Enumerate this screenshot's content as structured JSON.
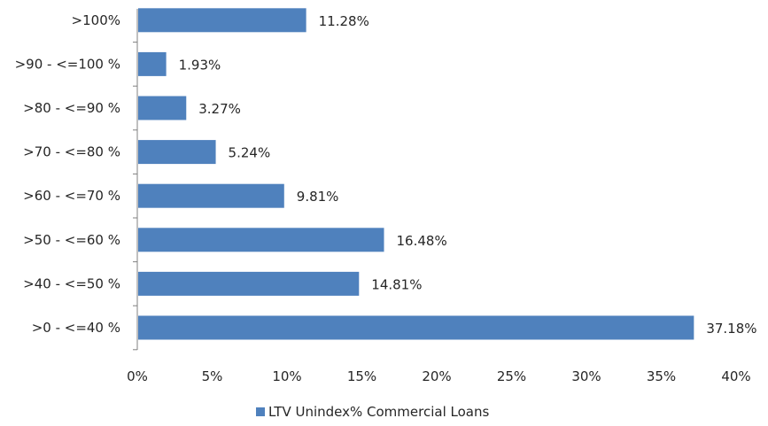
{
  "chart_data": {
    "type": "bar",
    "orientation": "horizontal",
    "categories": [
      ">0 - <=40 %",
      ">40 - <=50 %",
      ">50 - <=60 %",
      ">60 - <=70 %",
      ">70 - <=80 %",
      ">80 - <=90 %",
      ">90 - <=100 %",
      ">100%"
    ],
    "series": [
      {
        "name": "LTV Unindex% Commercial Loans",
        "values": [
          37.18,
          14.81,
          16.48,
          9.81,
          5.24,
          3.27,
          1.93,
          11.28
        ],
        "value_labels": [
          "37.18%",
          "14.81%",
          "16.48%",
          "9.81%",
          "5.24%",
          "3.27%",
          "1.93%",
          "11.28%"
        ],
        "color": "#4F81BD"
      }
    ],
    "x_ticks": [
      "0%",
      "5%",
      "10%",
      "15%",
      "20%",
      "25%",
      "30%",
      "35%",
      "40%"
    ],
    "xlim": [
      0,
      40
    ],
    "title": "",
    "xlabel": "",
    "ylabel": "",
    "grid": false,
    "legend_position": "bottom"
  },
  "colors": {
    "bar": "#4F81BD",
    "axis": "#808080",
    "text": "#262626"
  }
}
